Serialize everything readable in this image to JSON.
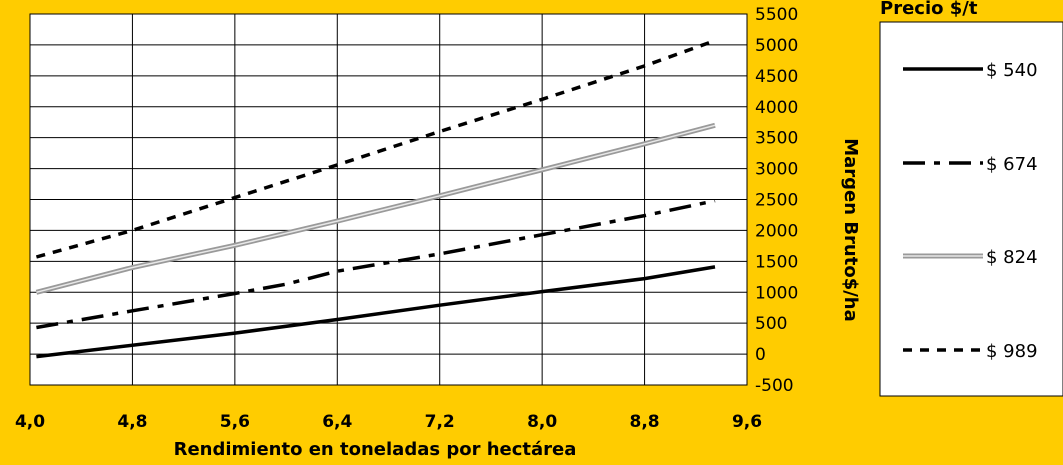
{
  "chart_data": {
    "type": "line",
    "xlabel": "Rendimiento en toneladas por hectárea",
    "ylabel": "Margen Bruto$/ha",
    "xlim": [
      4.0,
      9.6
    ],
    "ylim": [
      -500,
      5500
    ],
    "x_ticks": [
      "4,0",
      "4,8",
      "5,6",
      "6,4",
      "7,2",
      "8,0",
      "8,8",
      "9,6"
    ],
    "y_ticks": [
      "5500",
      "5000",
      "4500",
      "4000",
      "3500",
      "3000",
      "2500",
      "2000",
      "1500",
      "1000",
      "500",
      "0",
      "-500"
    ],
    "grid": true,
    "legend_title": "Precio $/t",
    "legend_position": "right",
    "series": [
      {
        "name": "$ 540",
        "style": "solid",
        "color": "#000000",
        "points": [
          [
            4.05,
            -40
          ],
          [
            5.6,
            340
          ],
          [
            6.4,
            560
          ],
          [
            7.2,
            790
          ],
          [
            8.0,
            1010
          ],
          [
            8.8,
            1220
          ],
          [
            9.35,
            1410
          ]
        ]
      },
      {
        "name": "$ 674",
        "style": "dashdot",
        "color": "#000000",
        "points": [
          [
            4.05,
            430
          ],
          [
            4.8,
            700
          ],
          [
            5.6,
            980
          ],
          [
            6.0,
            1130
          ],
          [
            6.4,
            1340
          ],
          [
            7.2,
            1620
          ],
          [
            8.0,
            1930
          ],
          [
            8.8,
            2240
          ],
          [
            9.35,
            2480
          ]
        ]
      },
      {
        "name": "$ 824",
        "style": "double",
        "color": "#9a9a9a",
        "points": [
          [
            4.05,
            1000
          ],
          [
            4.8,
            1400
          ],
          [
            5.6,
            1760
          ],
          [
            6.4,
            2150
          ],
          [
            7.2,
            2560
          ],
          [
            8.0,
            2980
          ],
          [
            8.8,
            3400
          ],
          [
            9.35,
            3700
          ]
        ]
      },
      {
        "name": "$ 989",
        "style": "dashed",
        "color": "#000000",
        "points": [
          [
            4.05,
            1570
          ],
          [
            4.8,
            2000
          ],
          [
            5.6,
            2530
          ],
          [
            6.4,
            3060
          ],
          [
            7.2,
            3600
          ],
          [
            8.0,
            4120
          ],
          [
            8.8,
            4660
          ],
          [
            9.35,
            5070
          ]
        ]
      }
    ]
  },
  "colors": {
    "background": "#FFCC00",
    "plot_area": "#FFFFFF",
    "negative_tick": "#FF0000"
  }
}
